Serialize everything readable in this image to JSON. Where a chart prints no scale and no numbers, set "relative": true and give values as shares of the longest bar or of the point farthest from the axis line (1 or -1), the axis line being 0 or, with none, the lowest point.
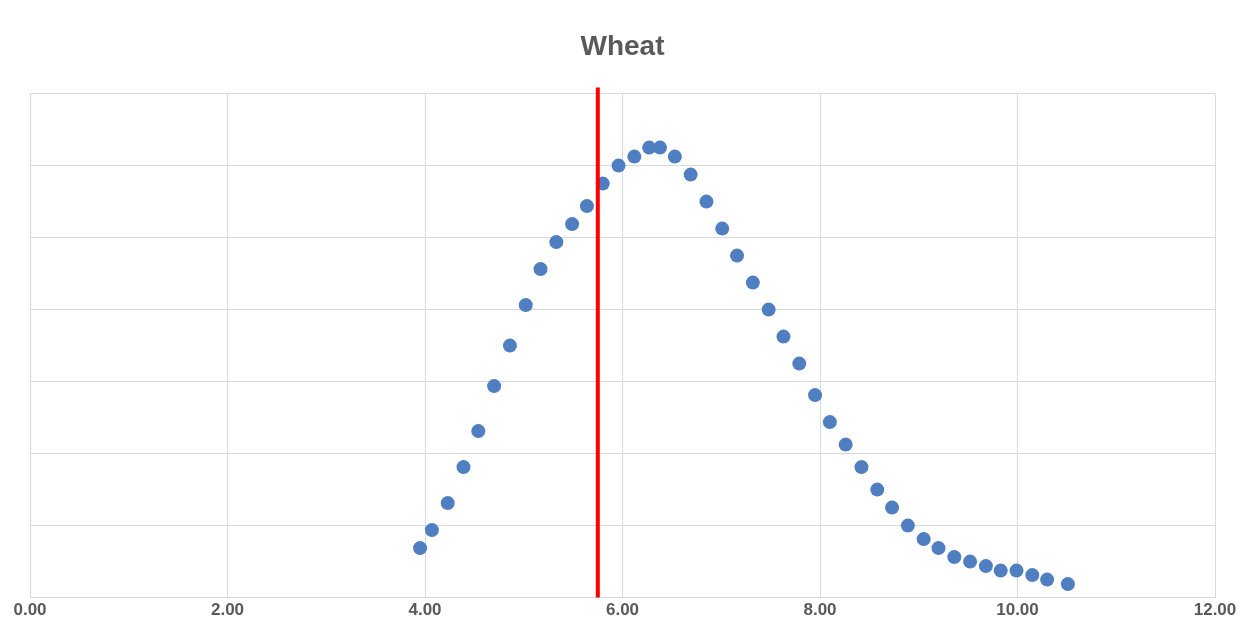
{
  "chart_data": {
    "type": "scatter",
    "title": "Wheat",
    "relative": true,
    "marker": "circle",
    "grid": true,
    "tick_labels": "x",
    "legend": false,
    "xlim": [
      0,
      12
    ],
    "xticks": [
      {
        "value": 0,
        "label": "0.00"
      },
      {
        "value": 2,
        "label": "2.00"
      },
      {
        "value": 4,
        "label": "4.00"
      },
      {
        "value": 6,
        "label": "6.00"
      },
      {
        "value": 8,
        "label": "8.00"
      },
      {
        "value": 10,
        "label": "10.00"
      },
      {
        "value": 12,
        "label": "12.00"
      }
    ],
    "series": [
      {
        "color": "#4f7fc0",
        "x": [
          3.95,
          4.07,
          4.23,
          4.39,
          4.54,
          4.7,
          4.86,
          5.02,
          5.17,
          5.33,
          5.49,
          5.64,
          5.8,
          5.96,
          6.12,
          6.27,
          6.38,
          6.53,
          6.69,
          6.85,
          7.01,
          7.16,
          7.32,
          7.48,
          7.63,
          7.79,
          7.95,
          8.1,
          8.26,
          8.42,
          8.58,
          8.73,
          8.89,
          9.05,
          9.2,
          9.36,
          9.52,
          9.68,
          9.83,
          9.99,
          10.15,
          10.3,
          10.51
        ],
        "values": [
          0.11,
          0.15,
          0.21,
          0.29,
          0.37,
          0.47,
          0.56,
          0.65,
          0.73,
          0.79,
          0.83,
          0.87,
          0.92,
          0.96,
          0.98,
          1,
          1,
          0.98,
          0.94,
          0.88,
          0.82,
          0.76,
          0.7,
          0.64,
          0.58,
          0.52,
          0.45,
          0.39,
          0.34,
          0.29,
          0.24,
          0.2,
          0.16,
          0.13,
          0.11,
          0.09,
          0.08,
          0.07,
          0.06,
          0.06,
          0.05,
          0.04,
          0.03
        ]
      }
    ],
    "ref_lines": [
      {
        "axis": "x",
        "value": 5.75,
        "color": "#ff0000"
      }
    ]
  }
}
